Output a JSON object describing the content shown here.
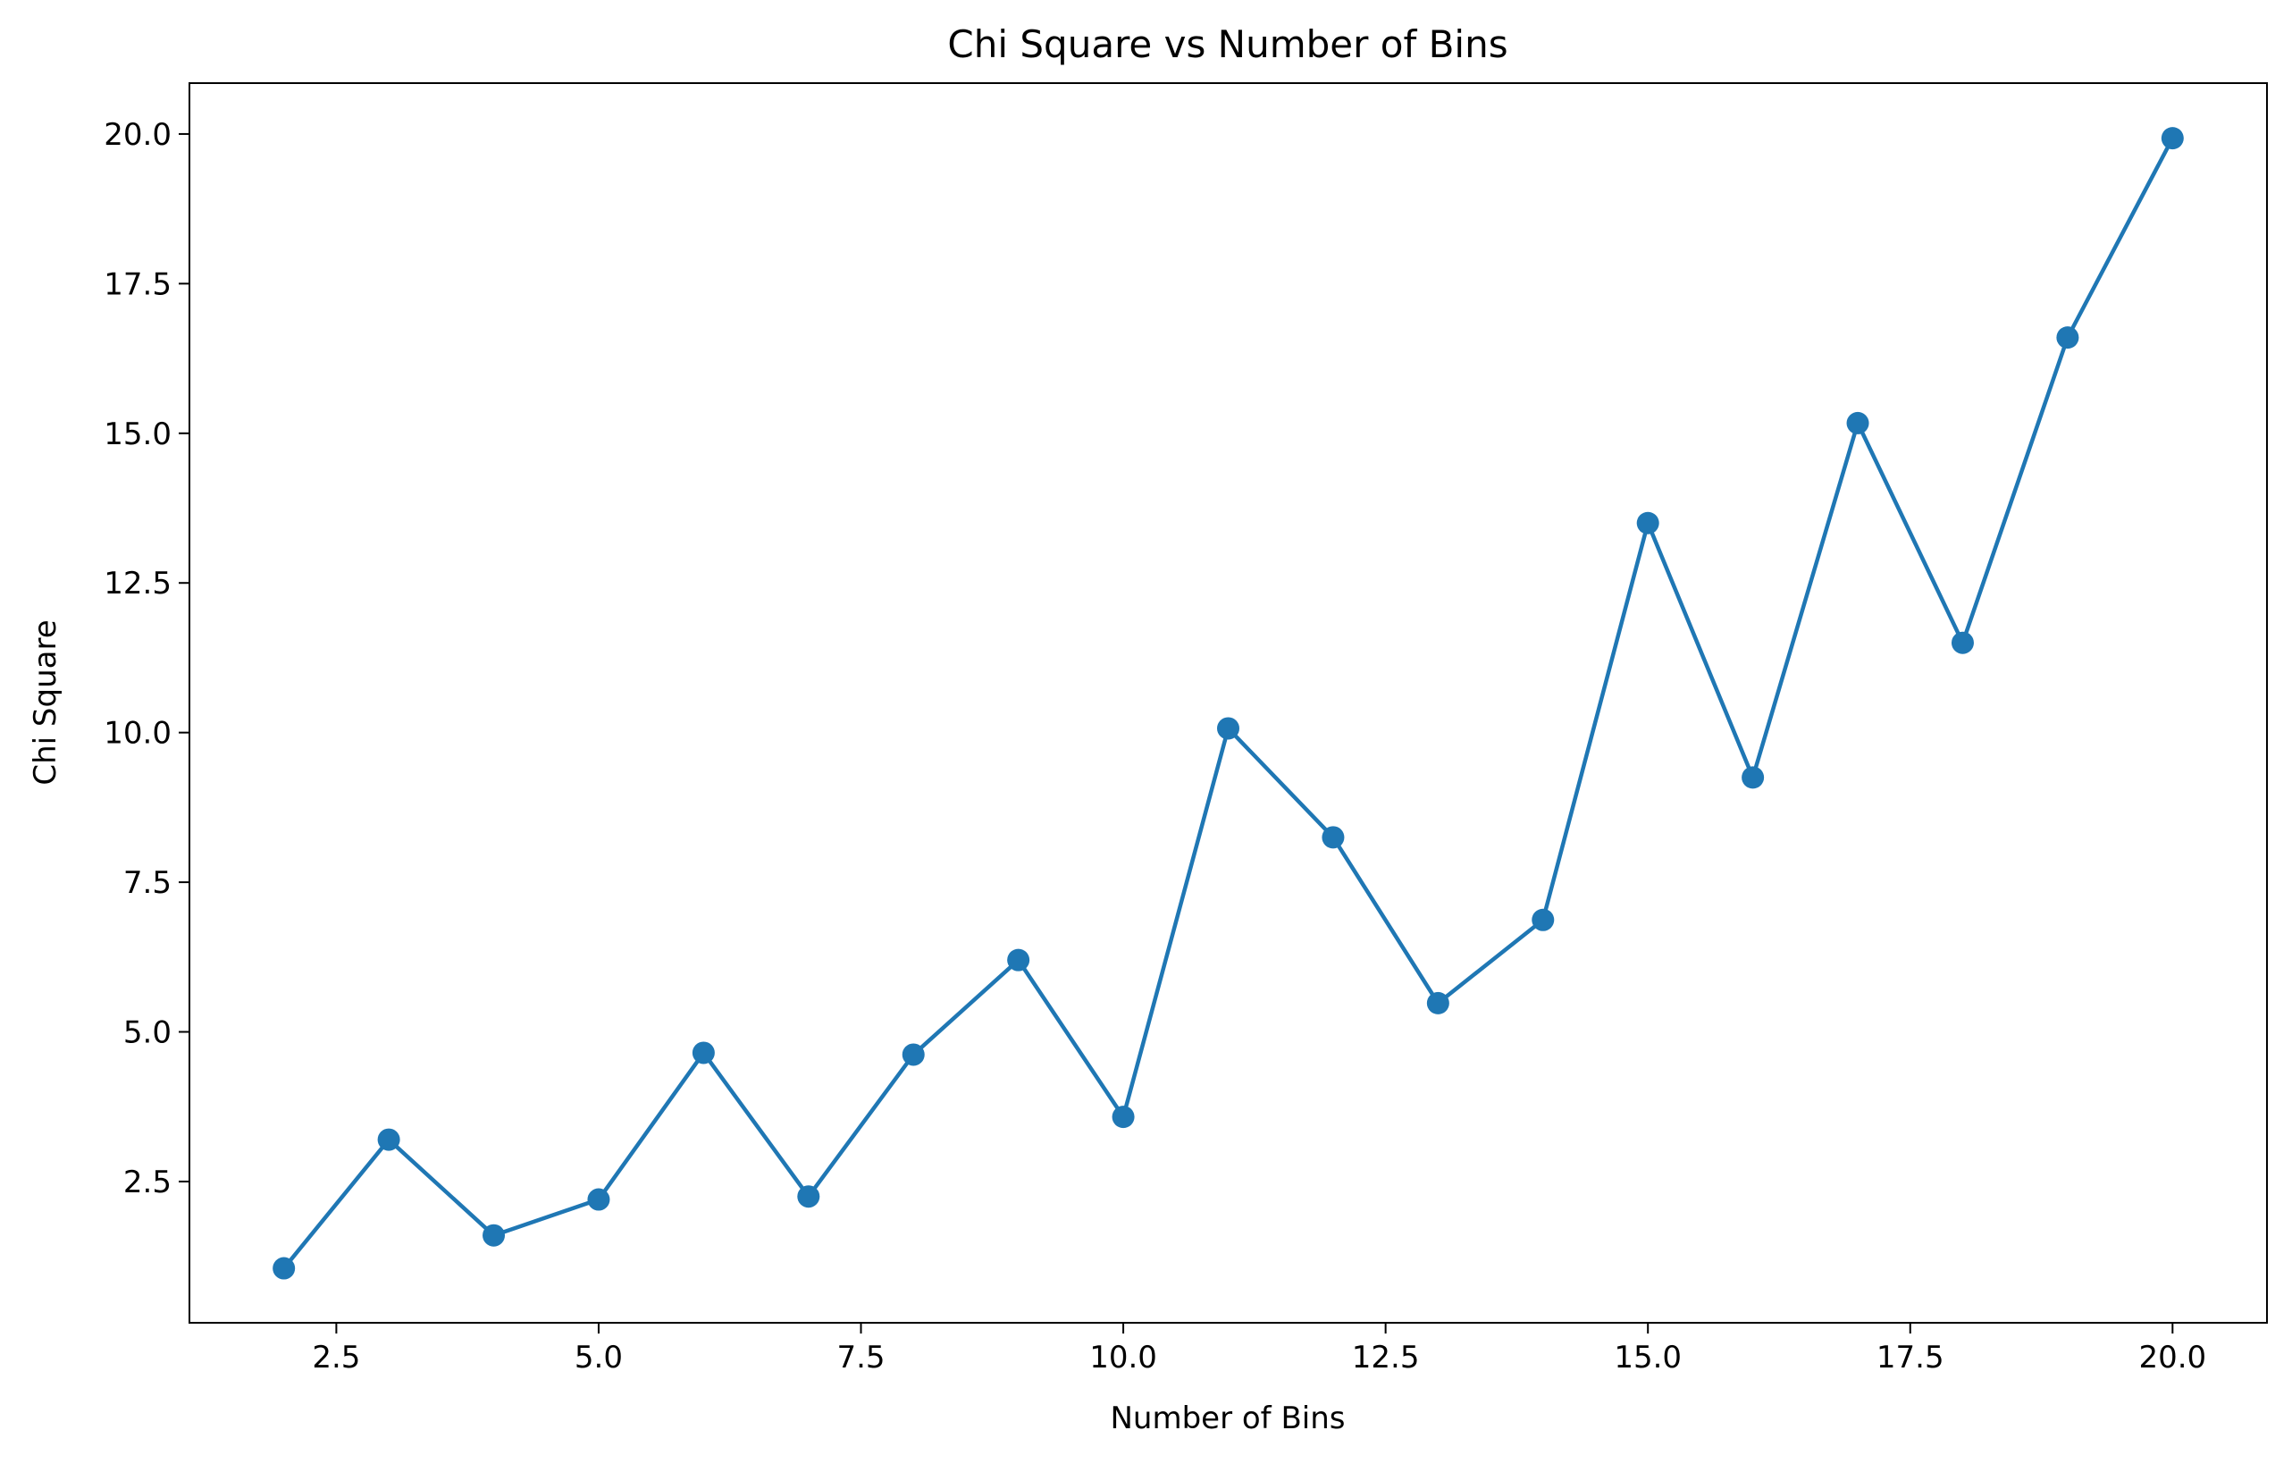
{
  "chart_data": {
    "type": "line",
    "title": "Chi Square vs Number of Bins",
    "xlabel": "Number of Bins",
    "ylabel": "Chi Square",
    "xlim": [
      1.1,
      20.9
    ],
    "ylim": [
      0.14,
      20.85
    ],
    "xticks": [
      2.5,
      5.0,
      7.5,
      10.0,
      12.5,
      15.0,
      17.5,
      20.0
    ],
    "xtick_labels": [
      "2.5",
      "5.0",
      "7.5",
      "10.0",
      "12.5",
      "15.0",
      "17.5",
      "20.0"
    ],
    "yticks": [
      2.5,
      5.0,
      7.5,
      10.0,
      12.5,
      15.0,
      17.5,
      20.0
    ],
    "ytick_labels": [
      "2.5",
      "5.0",
      "7.5",
      "10.0",
      "12.5",
      "15.0",
      "17.5",
      "20.0"
    ],
    "grid": false,
    "marker": "circle",
    "color": "#1f77b4",
    "series": [
      {
        "x": [
          2,
          3,
          4,
          5,
          6,
          7,
          8,
          9,
          10,
          11,
          12,
          13,
          14,
          15,
          16,
          17,
          18,
          19,
          20
        ],
        "y": [
          1.05,
          3.2,
          1.6,
          2.2,
          4.65,
          2.25,
          4.62,
          6.2,
          3.58,
          10.07,
          8.25,
          5.48,
          6.87,
          13.5,
          9.25,
          15.17,
          11.5,
          16.6,
          19.93
        ]
      }
    ]
  }
}
